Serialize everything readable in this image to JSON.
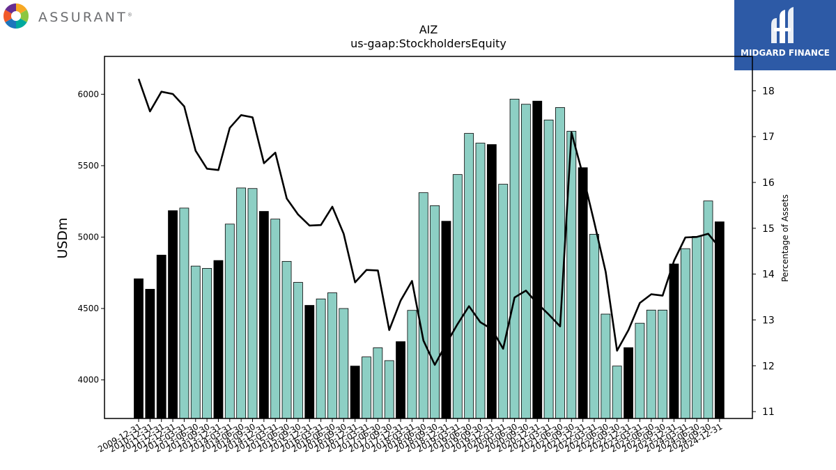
{
  "header": {
    "company_name": "ASSURANT",
    "company_reg": "®",
    "logo_icon": "assurant-logo-icon",
    "watermark_name": "MIDGARD FINANCE",
    "watermark_icon": "midgard-logo-icon"
  },
  "colors": {
    "bar_quarter": "#8dcfc4",
    "bar_year_end": "#000000",
    "line": "#000000",
    "watermark_bg": "#2d5aa6"
  },
  "chart_data": {
    "type": "bar",
    "title": "AIZ",
    "subtitle": "us-gaap:StockholdersEquity",
    "ylabel": "USDm",
    "y2label": "Percentage of Assets",
    "ylim": [
      3730,
      6265
    ],
    "y2lim": [
      10.85,
      18.75
    ],
    "yticks": [
      4000,
      4500,
      5000,
      5500,
      6000
    ],
    "y2ticks": [
      11,
      12,
      13,
      14,
      15,
      16,
      17,
      18
    ],
    "categories": [
      "2009-12-31",
      "2010-12-31",
      "2011-12-31",
      "2012-12-31",
      "2013-03-31",
      "2013-06-30",
      "2013-09-30",
      "2013-12-31",
      "2014-03-31",
      "2014-06-30",
      "2014-09-30",
      "2014-12-31",
      "2015-03-31",
      "2015-06-30",
      "2015-09-30",
      "2015-12-31",
      "2016-03-31",
      "2016-06-30",
      "2016-09-30",
      "2016-12-31",
      "2017-03-31",
      "2017-06-30",
      "2017-09-30",
      "2017-12-31",
      "2018-03-31",
      "2018-06-30",
      "2018-09-30",
      "2018-12-31",
      "2019-03-31",
      "2019-06-30",
      "2019-09-30",
      "2019-12-31",
      "2020-03-31",
      "2020-06-30",
      "2020-09-30",
      "2020-12-31",
      "2021-03-31",
      "2021-06-30",
      "2021-09-30",
      "2021-12-31",
      "2022-03-31",
      "2022-06-30",
      "2022-09-30",
      "2022-12-31",
      "2023-03-31",
      "2023-06-30",
      "2023-09-30",
      "2023-12-31",
      "2024-03-31",
      "2024-06-30",
      "2024-09-30",
      "2024-12-31"
    ],
    "series": [
      {
        "kind": "bar",
        "values": [
          4708,
          4635,
          4874,
          5185,
          5203,
          4797,
          4781,
          4836,
          5091,
          5344,
          5340,
          5180,
          5126,
          4830,
          4683,
          4522,
          4567,
          4610,
          4500,
          4097,
          4161,
          4225,
          4135,
          4268,
          4487,
          5311,
          5220,
          5111,
          5438,
          5726,
          5658,
          5648,
          5370,
          5966,
          5930,
          5952,
          5820,
          5907,
          5741,
          5486,
          5020,
          4461,
          4097,
          4226,
          4397,
          4489,
          4489,
          4812,
          4919,
          5005,
          5253,
          5107
        ]
      },
      {
        "kind": "line",
        "values": [
          18.26,
          17.55,
          17.98,
          17.93,
          17.66,
          16.69,
          16.3,
          16.27,
          17.19,
          17.47,
          17.42,
          16.42,
          16.65,
          15.65,
          15.3,
          15.06,
          15.07,
          15.47,
          14.88,
          13.82,
          14.09,
          14.08,
          12.78,
          13.42,
          13.85,
          12.55,
          12.02,
          12.48,
          12.91,
          13.3,
          12.95,
          12.8,
          12.37,
          13.49,
          13.64,
          13.36,
          13.12,
          12.86,
          17.09,
          16.16,
          15.13,
          14.05,
          12.33,
          12.78,
          13.37,
          13.56,
          13.53,
          14.29,
          14.8,
          14.81,
          14.88,
          14.58
        ]
      }
    ],
    "highlight": "year-end dates (December 31) drawn in black",
    "grid": false
  }
}
